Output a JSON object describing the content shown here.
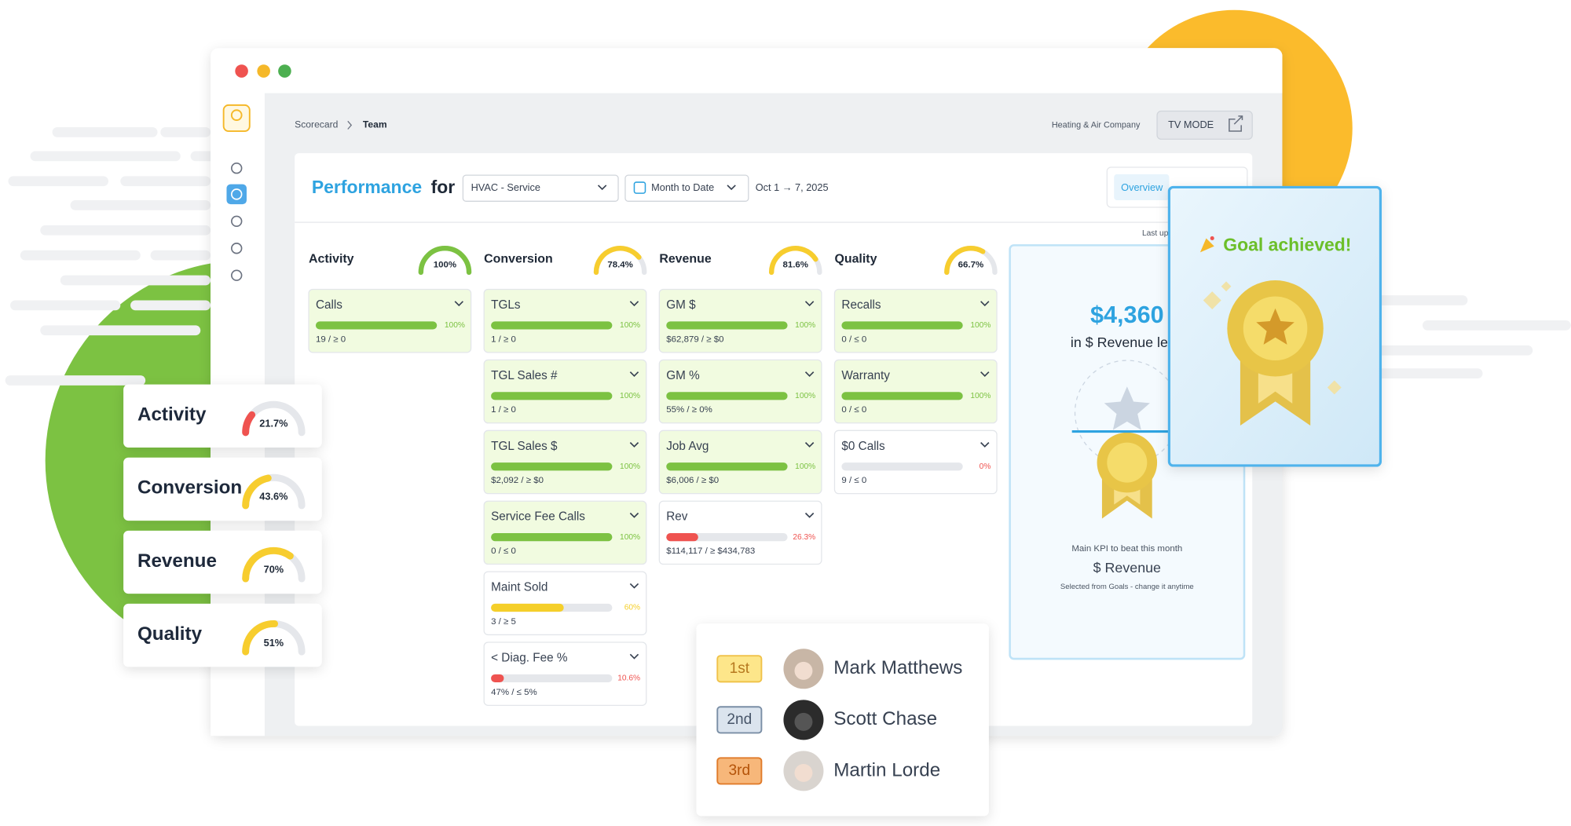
{
  "window": {
    "breadcrumb": [
      "Scorecard",
      "Team"
    ],
    "company": "Heating & Air Company",
    "tv_mode": "TV MODE"
  },
  "toolbar": {
    "title": "Performance",
    "for": "for",
    "team": "HVAC - Service",
    "range": "Month to Date",
    "dates": "Oct 1 → 7, 2025",
    "tab": "Overview",
    "last_updated": "Last up"
  },
  "columns": [
    {
      "name": "Activity",
      "gauge": {
        "value": 100,
        "label": "100%",
        "color": "#7cc242"
      },
      "metrics": [
        {
          "name": "Calls",
          "percent": {
            "value": 100,
            "label": "100%"
          },
          "detail": "19 / ≥ 0",
          "color": "#7cc242"
        }
      ]
    },
    {
      "name": "Conversion",
      "gauge": {
        "value": 78.4,
        "label": "78.4%",
        "color": "#f7cd2e"
      },
      "metrics": [
        {
          "name": "TGLs",
          "percent": {
            "value": 100,
            "label": "100%"
          },
          "detail": "1 / ≥ 0",
          "color": "#7cc242"
        },
        {
          "name": "TGL Sales #",
          "percent": {
            "value": 100,
            "label": "100%"
          },
          "detail": "1 / ≥ 0",
          "color": "#7cc242"
        },
        {
          "name": "TGL Sales $",
          "percent": {
            "value": 100,
            "label": "100%"
          },
          "detail": "$2,092 / ≥ $0",
          "color": "#7cc242"
        },
        {
          "name": "Service Fee Calls",
          "percent": {
            "value": 100,
            "label": "100%"
          },
          "detail": "0 / ≤ 0",
          "color": "#7cc242"
        },
        {
          "name": "Maint Sold",
          "percent": {
            "value": 60,
            "label": "60%"
          },
          "detail": "3 / ≥ 5",
          "color": "#f5cf2a"
        },
        {
          "name": "< Diag. Fee %",
          "percent": {
            "value": 10.6,
            "label": "10.6%"
          },
          "detail": "47% / ≤ 5%",
          "color": "#ef5350"
        }
      ]
    },
    {
      "name": "Revenue",
      "gauge": {
        "value": 81.6,
        "label": "81.6%",
        "color": "#f7cd2e"
      },
      "metrics": [
        {
          "name": "GM $",
          "percent": {
            "value": 100,
            "label": "100%"
          },
          "detail": "$62,879 / ≥ $0",
          "color": "#7cc242"
        },
        {
          "name": "GM %",
          "percent": {
            "value": 100,
            "label": "100%"
          },
          "detail": "55% / ≥ 0%",
          "color": "#7cc242"
        },
        {
          "name": "Job Avg",
          "percent": {
            "value": 100,
            "label": "100%"
          },
          "detail": "$6,006 / ≥ $0",
          "color": "#7cc242"
        },
        {
          "name": "Rev",
          "percent": {
            "value": 26.3,
            "label": "26.3%"
          },
          "detail": "$114,117 / ≥ $434,783",
          "color": "#ef5350"
        }
      ]
    },
    {
      "name": "Quality",
      "gauge": {
        "value": 66.7,
        "label": "66.7%",
        "color": "#f7cd2e"
      },
      "metrics": [
        {
          "name": "Recalls",
          "percent": {
            "value": 100,
            "label": "100%"
          },
          "detail": "0 / ≤ 0",
          "color": "#7cc242"
        },
        {
          "name": "Warranty",
          "percent": {
            "value": 100,
            "label": "100%"
          },
          "detail": "0 / ≤ 0",
          "color": "#7cc242"
        },
        {
          "name": "$0 Calls",
          "percent": {
            "value": 0,
            "label": "0%"
          },
          "detail": "9 / ≤ 0",
          "color": "#ef5350"
        }
      ]
    }
  ],
  "kpi": {
    "amount": "$4,360",
    "caption": "in $ Revenue left t",
    "note": "Main KPI to beat this month",
    "metric": "$ Revenue",
    "hint": "Selected from Goals - change it anytime"
  },
  "goal": {
    "title": "Goal achieved!"
  },
  "summary": [
    {
      "name": "Activity",
      "gauge": {
        "value": 21.7,
        "label": "21.7%",
        "color": "#ef5350"
      }
    },
    {
      "name": "Conversion",
      "gauge": {
        "value": 43.6,
        "label": "43.6%",
        "color": "#f7cd2e"
      }
    },
    {
      "name": "Revenue",
      "gauge": {
        "value": 70,
        "label": "70%",
        "color": "#f7cd2e"
      }
    },
    {
      "name": "Quality",
      "gauge": {
        "value": 51,
        "label": "51%",
        "color": "#f7cd2e"
      }
    }
  ],
  "leaderboard": [
    {
      "rank": "1st",
      "name": "Mark Matthews"
    },
    {
      "rank": "2nd",
      "name": "Scott Chase"
    },
    {
      "rank": "3rd",
      "name": "Martin Lorde"
    }
  ]
}
